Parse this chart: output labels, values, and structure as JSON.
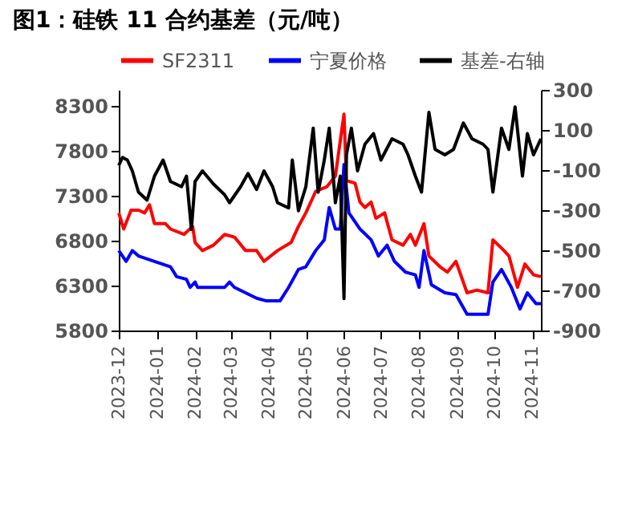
{
  "chart_data": {
    "type": "line",
    "title": "图1：硅铁 11 合约基差（元/吨）",
    "legend": "top",
    "grid": false,
    "xlim": [
      "2023-12-01",
      "2024-11-08"
    ],
    "xticks": [
      "2023-12",
      "2024-01",
      "2024-02",
      "2024-03",
      "2024-04",
      "2024-05",
      "2024-06",
      "2024-07",
      "2024-08",
      "2024-09",
      "2024-10",
      "2024-11"
    ],
    "ylim": [
      5800,
      8480
    ],
    "yticks": [
      5800,
      6300,
      6800,
      7300,
      7800,
      8300
    ],
    "y2lim": [
      -900,
      300
    ],
    "y2ticks": [
      -900,
      -700,
      -500,
      -300,
      -100,
      100,
      300
    ],
    "series": [
      {
        "name": "SF2311",
        "color": "#ff0000",
        "x": [
          "2023-12-01",
          "2023-12-05",
          "2023-12-11",
          "2023-12-17",
          "2023-12-22",
          "2023-12-26",
          "2023-12-30",
          "2024-01-08",
          "2024-01-12",
          "2024-01-23",
          "2024-01-30",
          "2024-02-01",
          "2024-02-07",
          "2024-02-16",
          "2024-02-25",
          "2024-03-04",
          "2024-03-13",
          "2024-03-22",
          "2024-03-28",
          "2024-04-08",
          "2024-04-19",
          "2024-04-25",
          "2024-05-01",
          "2024-05-09",
          "2024-05-18",
          "2024-05-25",
          "2024-06-01",
          "2024-06-03",
          "2024-06-10",
          "2024-06-14",
          "2024-06-18",
          "2024-06-23",
          "2024-06-27",
          "2024-07-04",
          "2024-07-10",
          "2024-07-19",
          "2024-07-25",
          "2024-07-29",
          "2024-08-05",
          "2024-08-09",
          "2024-08-18",
          "2024-08-24",
          "2024-08-31",
          "2024-09-09",
          "2024-09-17",
          "2024-09-26",
          "2024-09-30",
          "2024-10-09",
          "2024-10-13",
          "2024-10-20",
          "2024-10-26",
          "2024-11-02",
          "2024-11-08"
        ],
        "values": [
          7110,
          6930,
          7140,
          7140,
          7110,
          7200,
          6990,
          6990,
          6930,
          6870,
          6960,
          6780,
          6690,
          6750,
          6870,
          6840,
          6690,
          6690,
          6570,
          6690,
          6780,
          6960,
          7110,
          7350,
          7400,
          7520,
          8210,
          7470,
          7440,
          7230,
          7170,
          7230,
          7050,
          7110,
          6810,
          6750,
          6870,
          6750,
          6990,
          6630,
          6510,
          6450,
          6570,
          6220,
          6250,
          6220,
          6810,
          6690,
          6630,
          6280,
          6540,
          6420,
          6400
        ]
      },
      {
        "name": "宁夏价格",
        "color": "#0000ff",
        "x": [
          "2023-12-01",
          "2023-12-07",
          "2023-12-12",
          "2023-12-17",
          "2023-12-30",
          "2024-01-12",
          "2024-01-17",
          "2024-01-25",
          "2024-01-28",
          "2024-02-01",
          "2024-02-03",
          "2024-02-25",
          "2024-02-29",
          "2024-03-04",
          "2024-03-13",
          "2024-03-22",
          "2024-03-30",
          "2024-04-10",
          "2024-04-17",
          "2024-04-25",
          "2024-05-01",
          "2024-05-09",
          "2024-05-16",
          "2024-05-20",
          "2024-05-25",
          "2024-05-29",
          "2024-06-01",
          "2024-06-05",
          "2024-06-14",
          "2024-06-23",
          "2024-06-29",
          "2024-07-06",
          "2024-07-12",
          "2024-07-21",
          "2024-07-29",
          "2024-08-01",
          "2024-08-05",
          "2024-08-11",
          "2024-08-22",
          "2024-08-31",
          "2024-09-09",
          "2024-09-26",
          "2024-09-30",
          "2024-10-07",
          "2024-10-15",
          "2024-10-22",
          "2024-10-28",
          "2024-11-04",
          "2024-11-08"
        ],
        "values": [
          6690,
          6570,
          6690,
          6630,
          6570,
          6510,
          6400,
          6370,
          6280,
          6340,
          6280,
          6280,
          6340,
          6280,
          6220,
          6160,
          6130,
          6130,
          6280,
          6480,
          6510,
          6690,
          6810,
          7170,
          6930,
          6930,
          7650,
          7110,
          6930,
          6810,
          6630,
          6750,
          6570,
          6450,
          6420,
          6280,
          6690,
          6310,
          6220,
          6200,
          5980,
          5980,
          6340,
          6480,
          6280,
          6040,
          6220,
          6100,
          6100
        ]
      },
      {
        "name": "基差-右轴",
        "color": "#000000",
        "axis": "y2",
        "x": [
          "2023-12-01",
          "2023-12-04",
          "2023-12-08",
          "2023-12-12",
          "2023-12-17",
          "2023-12-24",
          "2023-12-30",
          "2024-01-06",
          "2024-01-12",
          "2024-01-21",
          "2024-01-25",
          "2024-01-29",
          "2024-02-01",
          "2024-02-07",
          "2024-02-16",
          "2024-02-25",
          "2024-02-29",
          "2024-03-09",
          "2024-03-15",
          "2024-03-22",
          "2024-03-28",
          "2024-04-04",
          "2024-04-08",
          "2024-04-17",
          "2024-04-20",
          "2024-04-25",
          "2024-05-01",
          "2024-05-07",
          "2024-05-11",
          "2024-05-16",
          "2024-05-20",
          "2024-05-25",
          "2024-05-29",
          "2024-06-01",
          "2024-06-03",
          "2024-06-07",
          "2024-06-12",
          "2024-06-18",
          "2024-06-25",
          "2024-07-01",
          "2024-07-10",
          "2024-07-19",
          "2024-07-23",
          "2024-07-29",
          "2024-08-03",
          "2024-08-09",
          "2024-08-14",
          "2024-08-22",
          "2024-08-29",
          "2024-09-06",
          "2024-09-13",
          "2024-09-22",
          "2024-09-26",
          "2024-09-30",
          "2024-10-07",
          "2024-10-13",
          "2024-10-18",
          "2024-10-24",
          "2024-10-28",
          "2024-11-02",
          "2024-11-08"
        ],
        "values": [
          -77,
          -37,
          -50,
          -104,
          -210,
          -250,
          -130,
          -50,
          -157,
          -183,
          -130,
          -396,
          -157,
          -104,
          -170,
          -223,
          -263,
          -183,
          -117,
          -197,
          -104,
          -183,
          -263,
          -289,
          -50,
          -303,
          -183,
          109,
          -210,
          -50,
          109,
          -263,
          -130,
          -741,
          -24,
          109,
          -104,
          29,
          82,
          -50,
          56,
          29,
          -24,
          -130,
          -210,
          188,
          3,
          -24,
          3,
          135,
          56,
          29,
          3,
          -210,
          109,
          3,
          215,
          -130,
          82,
          -24,
          56
        ]
      }
    ]
  }
}
